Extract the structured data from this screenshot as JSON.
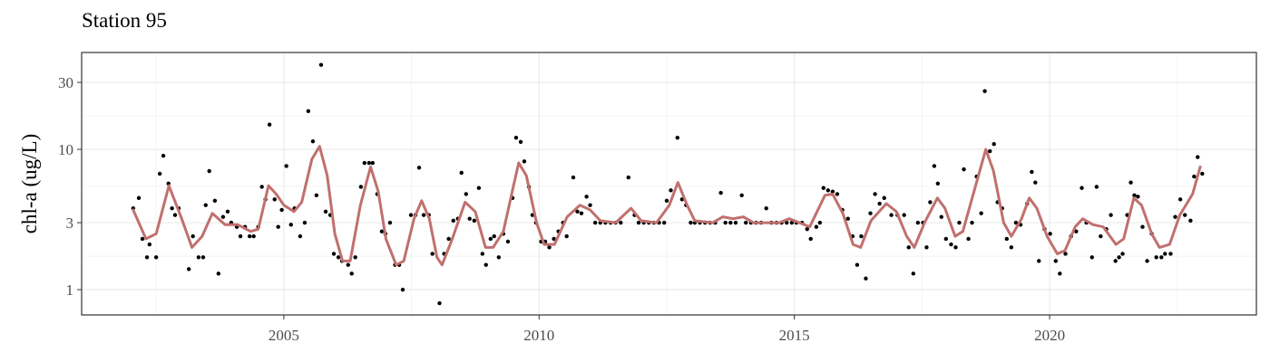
{
  "chart_data": {
    "type": "scatter",
    "title": "Station 95",
    "y_label": "chl-a (ug/L)",
    "y_log": true,
    "grid": true,
    "xlim": [
      2001.04,
      2024.05
    ],
    "ylim": [
      0.66,
      49
    ],
    "xticks": [
      2005,
      2010,
      2015,
      2020
    ],
    "yticks": [
      1,
      3,
      10,
      30
    ],
    "series": [
      {
        "type": "scatter",
        "color": "#000000",
        "x": [
          2002.05,
          2002.16,
          2002.23,
          2002.32,
          2002.37,
          2002.5,
          2002.57,
          2002.64,
          2002.74,
          2002.81,
          2002.87,
          2002.94,
          2003.14,
          2003.22,
          2003.33,
          2003.42,
          2003.47,
          2003.54,
          2003.65,
          2003.72,
          2003.81,
          2003.9,
          2003.97,
          2004.08,
          2004.15,
          2004.24,
          2004.33,
          2004.41,
          2004.5,
          2004.57,
          2004.64,
          2004.72,
          2004.82,
          2004.89,
          2004.96,
          2005.05,
          2005.14,
          2005.21,
          2005.32,
          2005.41,
          2005.48,
          2005.57,
          2005.64,
          2005.73,
          2005.82,
          2005.91,
          2005.98,
          2006.07,
          2006.14,
          2006.26,
          2006.33,
          2006.4,
          2006.51,
          2006.58,
          2006.67,
          2006.74,
          2006.83,
          2006.92,
          2006.99,
          2007.08,
          2007.18,
          2007.26,
          2007.33,
          2007.49,
          2007.58,
          2007.65,
          2007.74,
          2007.84,
          2007.91,
          2008.05,
          2008.14,
          2008.23,
          2008.32,
          2008.41,
          2008.48,
          2008.57,
          2008.64,
          2008.73,
          2008.82,
          2008.89,
          2008.96,
          2009.05,
          2009.12,
          2009.21,
          2009.3,
          2009.39,
          2009.48,
          2009.55,
          2009.64,
          2009.71,
          2009.8,
          2009.87,
          2009.94,
          2010.04,
          2010.12,
          2010.2,
          2010.29,
          2010.38,
          2010.47,
          2010.54,
          2010.67,
          2010.75,
          2010.83,
          2010.93,
          2011.0,
          2011.1,
          2011.2,
          2011.3,
          2011.4,
          2011.5,
          2011.6,
          2011.75,
          2011.87,
          2011.95,
          2012.05,
          2012.15,
          2012.25,
          2012.35,
          2012.45,
          2012.5,
          2012.58,
          2012.71,
          2012.8,
          2012.88,
          2012.97,
          2013.05,
          2013.15,
          2013.25,
          2013.35,
          2013.45,
          2013.56,
          2013.65,
          2013.75,
          2013.85,
          2013.97,
          2014.05,
          2014.15,
          2014.25,
          2014.35,
          2014.45,
          2014.55,
          2014.65,
          2014.75,
          2014.85,
          2014.95,
          2015.04,
          2015.15,
          2015.25,
          2015.32,
          2015.43,
          2015.5,
          2015.57,
          2015.66,
          2015.75,
          2015.84,
          2015.94,
          2016.05,
          2016.14,
          2016.23,
          2016.31,
          2016.4,
          2016.49,
          2016.58,
          2016.67,
          2016.76,
          2016.9,
          2017.02,
          2017.15,
          2017.24,
          2017.33,
          2017.42,
          2017.52,
          2017.59,
          2017.66,
          2017.74,
          2017.81,
          2017.88,
          2017.97,
          2018.07,
          2018.16,
          2018.23,
          2018.32,
          2018.41,
          2018.48,
          2018.57,
          2018.66,
          2018.73,
          2018.83,
          2018.91,
          2018.98,
          2019.07,
          2019.16,
          2019.25,
          2019.34,
          2019.43,
          2019.56,
          2019.65,
          2019.72,
          2019.79,
          2019.9,
          2020.01,
          2020.12,
          2020.2,
          2020.31,
          2020.42,
          2020.52,
          2020.63,
          2020.72,
          2020.83,
          2020.92,
          2021.0,
          2021.11,
          2021.2,
          2021.29,
          2021.36,
          2021.43,
          2021.52,
          2021.59,
          2021.66,
          2021.73,
          2021.82,
          2021.91,
          2022.0,
          2022.09,
          2022.19,
          2022.26,
          2022.37,
          2022.46,
          2022.56,
          2022.65,
          2022.76,
          2022.83,
          2022.9,
          2022.99
        ],
        "values": [
          3.8,
          4.5,
          2.3,
          1.7,
          2.1,
          1.7,
          6.7,
          9.0,
          5.7,
          3.8,
          3.4,
          3.8,
          1.4,
          2.4,
          1.7,
          1.7,
          4.0,
          7.0,
          4.3,
          1.3,
          3.3,
          3.6,
          3.0,
          2.8,
          2.4,
          2.8,
          2.4,
          2.4,
          2.8,
          5.4,
          4.4,
          15,
          4.4,
          2.8,
          3.7,
          7.6,
          2.9,
          3.8,
          2.4,
          3.0,
          18.7,
          11.4,
          4.7,
          40,
          3.6,
          3.4,
          1.8,
          1.7,
          1.6,
          1.5,
          1.3,
          1.7,
          5.4,
          8.0,
          8.0,
          8.0,
          4.8,
          2.6,
          2.5,
          3.0,
          1.5,
          1.5,
          1.0,
          3.4,
          3.4,
          7.4,
          3.4,
          3.4,
          1.8,
          0.8,
          1.8,
          2.3,
          3.1,
          3.2,
          6.8,
          4.8,
          3.2,
          3.1,
          5.3,
          1.8,
          1.5,
          2.3,
          2.4,
          1.7,
          2.5,
          2.2,
          4.5,
          12.1,
          11.3,
          8.2,
          5.4,
          3.4,
          3.0,
          2.2,
          2.2,
          2.0,
          2.3,
          2.6,
          3.0,
          2.4,
          6.3,
          3.6,
          3.5,
          4.6,
          4.0,
          3.0,
          3.0,
          3.0,
          3.0,
          3.0,
          3.0,
          6.3,
          3.4,
          3.0,
          3.0,
          3.0,
          3.0,
          3.0,
          3.0,
          4.3,
          5.1,
          12.1,
          4.4,
          4.0,
          3.0,
          3.0,
          3.0,
          3.0,
          3.0,
          3.0,
          4.9,
          3.0,
          3.0,
          3.0,
          4.7,
          3.0,
          3.0,
          3.0,
          3.0,
          3.8,
          3.0,
          3.0,
          3.0,
          3.0,
          3.0,
          3.0,
          3.0,
          2.7,
          2.3,
          2.8,
          3.0,
          5.3,
          5.1,
          5.0,
          4.8,
          3.7,
          3.2,
          2.4,
          1.5,
          2.4,
          1.2,
          3.5,
          4.8,
          4.1,
          4.5,
          3.4,
          3.4,
          3.4,
          2.0,
          1.3,
          3.0,
          3.0,
          2.0,
          4.2,
          7.6,
          5.7,
          3.3,
          2.3,
          2.1,
          2.0,
          3.0,
          7.2,
          2.3,
          3.0,
          6.4,
          3.5,
          26,
          9.7,
          10.9,
          4.2,
          3.8,
          2.3,
          2.0,
          3.0,
          2.9,
          4.1,
          6.9,
          5.8,
          1.6,
          2.7,
          2.5,
          1.6,
          1.3,
          1.8,
          2.4,
          2.6,
          5.3,
          3.0,
          1.7,
          5.4,
          2.4,
          2.7,
          3.4,
          1.6,
          1.7,
          1.8,
          3.4,
          5.8,
          4.7,
          4.6,
          2.8,
          1.6,
          2.5,
          1.7,
          1.7,
          1.8,
          1.8,
          3.3,
          4.4,
          3.4,
          3.1,
          6.4,
          8.8,
          6.7
        ]
      },
      {
        "type": "line",
        "color": "#c0706e",
        "x": [
          2002.05,
          2002.3,
          2002.5,
          2002.75,
          2003.0,
          2003.2,
          2003.4,
          2003.6,
          2003.85,
          2004.1,
          2004.35,
          2004.5,
          2004.7,
          2004.85,
          2005.0,
          2005.2,
          2005.35,
          2005.55,
          2005.7,
          2005.85,
          2006.0,
          2006.15,
          2006.3,
          2006.5,
          2006.7,
          2006.85,
          2007.0,
          2007.2,
          2007.35,
          2007.55,
          2007.7,
          2007.85,
          2008.0,
          2008.1,
          2008.3,
          2008.55,
          2008.75,
          2008.95,
          2009.1,
          2009.3,
          2009.5,
          2009.6,
          2009.75,
          2009.95,
          2010.1,
          2010.3,
          2010.55,
          2010.8,
          2011.0,
          2011.2,
          2011.5,
          2011.8,
          2012.0,
          2012.3,
          2012.55,
          2012.72,
          2012.9,
          2013.05,
          2013.4,
          2013.6,
          2013.8,
          2014.0,
          2014.2,
          2014.7,
          2014.9,
          2015.1,
          2015.3,
          2015.6,
          2015.75,
          2015.95,
          2016.15,
          2016.3,
          2016.5,
          2016.8,
          2017.0,
          2017.2,
          2017.35,
          2017.55,
          2017.8,
          2017.95,
          2018.15,
          2018.3,
          2018.55,
          2018.75,
          2018.9,
          2019.1,
          2019.25,
          2019.45,
          2019.6,
          2019.75,
          2019.95,
          2020.15,
          2020.3,
          2020.5,
          2020.65,
          2020.85,
          2021.05,
          2021.3,
          2021.45,
          2021.65,
          2021.8,
          2022.0,
          2022.15,
          2022.35,
          2022.55,
          2022.8,
          2022.95
        ],
        "values": [
          3.7,
          2.3,
          2.5,
          5.5,
          3.2,
          2.0,
          2.4,
          3.5,
          2.9,
          2.9,
          2.6,
          2.7,
          5.5,
          4.8,
          4.0,
          3.6,
          4.2,
          8.5,
          10.5,
          6.5,
          2.5,
          1.6,
          1.6,
          4.0,
          7.5,
          5.0,
          2.3,
          1.5,
          1.6,
          3.2,
          4.3,
          3.2,
          1.7,
          1.5,
          2.3,
          4.2,
          3.6,
          2.0,
          2.0,
          2.6,
          5.5,
          8.0,
          6.5,
          3.0,
          2.1,
          2.1,
          3.3,
          4.0,
          3.7,
          3.1,
          3.0,
          3.8,
          3.1,
          3.0,
          4.0,
          5.8,
          4.0,
          3.1,
          3.0,
          3.3,
          3.2,
          3.3,
          3.0,
          3.0,
          3.2,
          3.0,
          2.8,
          4.7,
          4.8,
          3.5,
          2.1,
          2.0,
          3.1,
          4.1,
          3.6,
          2.4,
          2.0,
          3.0,
          4.5,
          3.8,
          2.4,
          2.6,
          5.5,
          10.0,
          7.0,
          3.0,
          2.4,
          3.2,
          4.5,
          3.8,
          2.4,
          1.8,
          1.9,
          2.8,
          3.2,
          2.9,
          2.8,
          2.1,
          2.3,
          4.5,
          4.0,
          2.5,
          2.0,
          2.1,
          3.4,
          4.8,
          7.5
        ]
      }
    ]
  }
}
